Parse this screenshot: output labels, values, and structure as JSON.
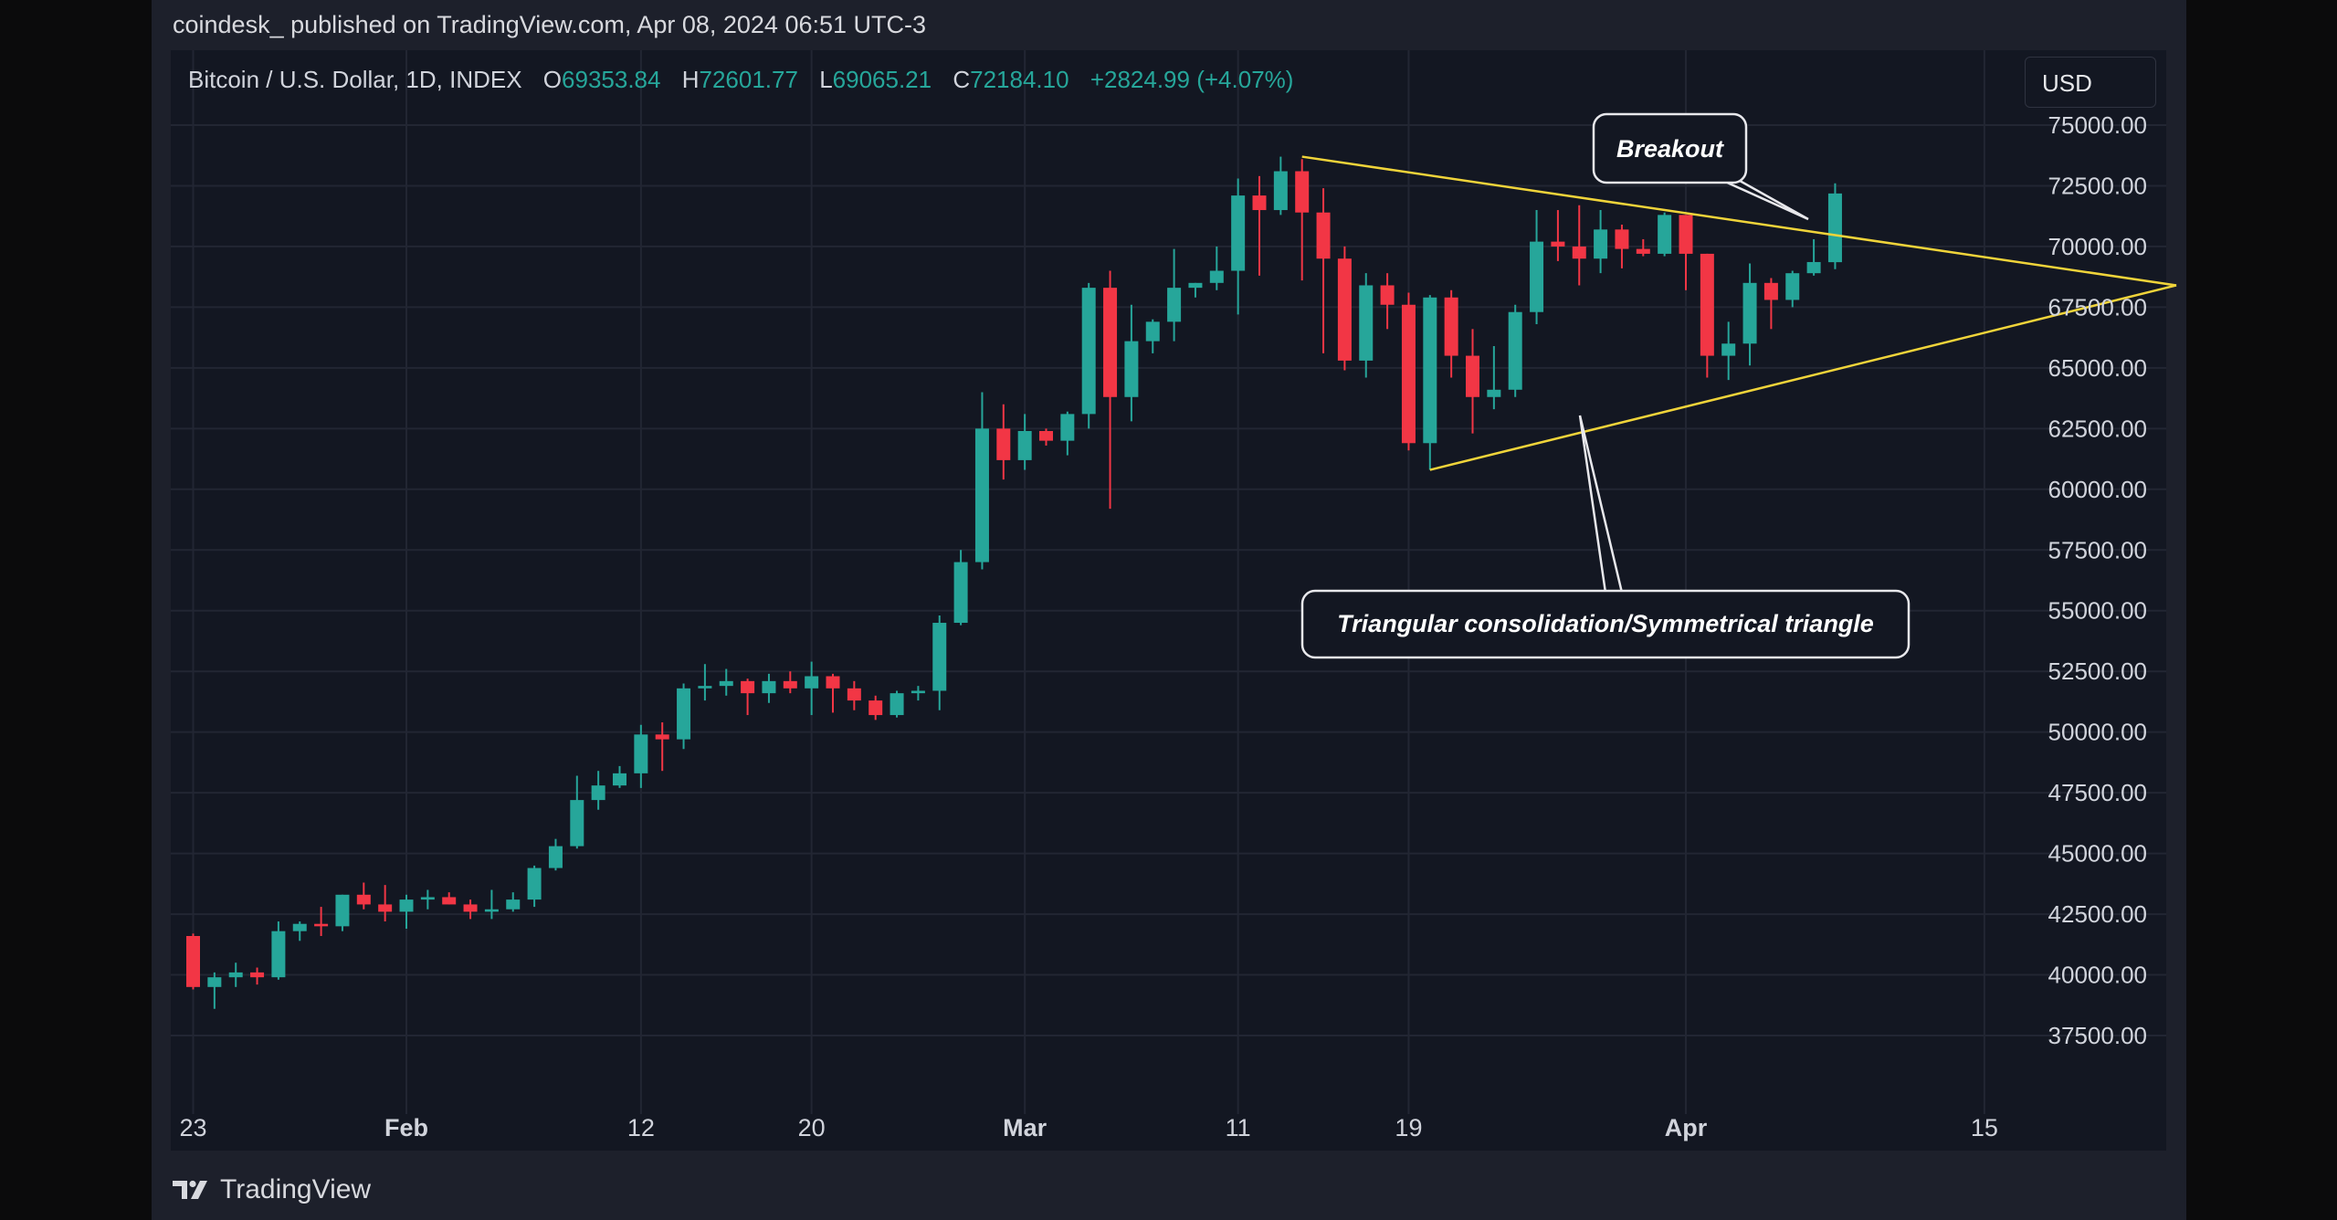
{
  "publisher_line": "coindesk_ published on TradingView.com, Apr 08, 2024 06:51 UTC-3",
  "header": {
    "symbol": "Bitcoin / U.S. Dollar, 1D, INDEX",
    "o_label": "O",
    "o_value": "69353.84",
    "h_label": "H",
    "h_value": "72601.77",
    "l_label": "L",
    "l_value": "69065.21",
    "c_label": "C",
    "c_value": "72184.10",
    "change": "+2824.99 (+4.07%)"
  },
  "currency_button": "USD",
  "brand": "TradingView",
  "colors": {
    "background": "#131722",
    "up": "#26a69a",
    "down": "#f23645",
    "trendline": "#f0d43a",
    "grid": "#222633",
    "axis_text": "#d1d4dc"
  },
  "chart_data": {
    "type": "candlestick",
    "x_tick_labels": [
      "23",
      "Feb",
      "12",
      "20",
      "Mar",
      "11",
      "19",
      "Apr",
      "15"
    ],
    "y_tick_labels": [
      "75000.00",
      "72500.00",
      "70000.00",
      "67500.00",
      "65000.00",
      "62500.00",
      "60000.00",
      "57500.00",
      "55000.00",
      "52500.00",
      "50000.00",
      "47500.00",
      "45000.00",
      "42500.00",
      "40000.00",
      "37500.00"
    ],
    "ylim": [
      35500,
      75500
    ],
    "grid": true,
    "candles": [
      {
        "date": "2024-01-22",
        "o": 41600,
        "h": 41700,
        "l": 39400,
        "c": 39500
      },
      {
        "date": "2024-01-23",
        "o": 39500,
        "h": 40100,
        "l": 38600,
        "c": 39900
      },
      {
        "date": "2024-01-24",
        "o": 39900,
        "h": 40500,
        "l": 39500,
        "c": 40100
      },
      {
        "date": "2024-01-25",
        "o": 40100,
        "h": 40300,
        "l": 39600,
        "c": 39900
      },
      {
        "date": "2024-01-26",
        "o": 39900,
        "h": 42200,
        "l": 39800,
        "c": 41800
      },
      {
        "date": "2024-01-27",
        "o": 41800,
        "h": 42200,
        "l": 41400,
        "c": 42100
      },
      {
        "date": "2024-01-28",
        "o": 42100,
        "h": 42800,
        "l": 41600,
        "c": 42000
      },
      {
        "date": "2024-01-29",
        "o": 42000,
        "h": 43300,
        "l": 41800,
        "c": 43300
      },
      {
        "date": "2024-01-30",
        "o": 43300,
        "h": 43800,
        "l": 42700,
        "c": 42900
      },
      {
        "date": "2024-01-31",
        "o": 42900,
        "h": 43700,
        "l": 42200,
        "c": 42600
      },
      {
        "date": "2024-02-01",
        "o": 42600,
        "h": 43300,
        "l": 41900,
        "c": 43100
      },
      {
        "date": "2024-02-02",
        "o": 43100,
        "h": 43500,
        "l": 42700,
        "c": 43200
      },
      {
        "date": "2024-02-03",
        "o": 43200,
        "h": 43400,
        "l": 42900,
        "c": 42900
      },
      {
        "date": "2024-02-04",
        "o": 42900,
        "h": 43100,
        "l": 42300,
        "c": 42600
      },
      {
        "date": "2024-02-05",
        "o": 42600,
        "h": 43500,
        "l": 42300,
        "c": 42700
      },
      {
        "date": "2024-02-06",
        "o": 42700,
        "h": 43400,
        "l": 42600,
        "c": 43100
      },
      {
        "date": "2024-02-07",
        "o": 43100,
        "h": 44500,
        "l": 42800,
        "c": 44400
      },
      {
        "date": "2024-02-08",
        "o": 44400,
        "h": 45600,
        "l": 44300,
        "c": 45300
      },
      {
        "date": "2024-02-09",
        "o": 45300,
        "h": 48200,
        "l": 45200,
        "c": 47200
      },
      {
        "date": "2024-02-10",
        "o": 47200,
        "h": 48400,
        "l": 46800,
        "c": 47800
      },
      {
        "date": "2024-02-11",
        "o": 47800,
        "h": 48600,
        "l": 47700,
        "c": 48300
      },
      {
        "date": "2024-02-12",
        "o": 48300,
        "h": 50300,
        "l": 47700,
        "c": 49900
      },
      {
        "date": "2024-02-13",
        "o": 49900,
        "h": 50400,
        "l": 48400,
        "c": 49700
      },
      {
        "date": "2024-02-14",
        "o": 49700,
        "h": 52000,
        "l": 49300,
        "c": 51800
      },
      {
        "date": "2024-02-15",
        "o": 51800,
        "h": 52800,
        "l": 51300,
        "c": 51900
      },
      {
        "date": "2024-02-16",
        "o": 51900,
        "h": 52600,
        "l": 51500,
        "c": 52100
      },
      {
        "date": "2024-02-17",
        "o": 52100,
        "h": 52200,
        "l": 50700,
        "c": 51600
      },
      {
        "date": "2024-02-18",
        "o": 51600,
        "h": 52400,
        "l": 51200,
        "c": 52100
      },
      {
        "date": "2024-02-19",
        "o": 52100,
        "h": 52500,
        "l": 51600,
        "c": 51800
      },
      {
        "date": "2024-02-20",
        "o": 51800,
        "h": 52900,
        "l": 50700,
        "c": 52300
      },
      {
        "date": "2024-02-21",
        "o": 52300,
        "h": 52400,
        "l": 50800,
        "c": 51800
      },
      {
        "date": "2024-02-22",
        "o": 51800,
        "h": 52100,
        "l": 50900,
        "c": 51300
      },
      {
        "date": "2024-02-23",
        "o": 51300,
        "h": 51500,
        "l": 50500,
        "c": 50700
      },
      {
        "date": "2024-02-24",
        "o": 50700,
        "h": 51700,
        "l": 50600,
        "c": 51600
      },
      {
        "date": "2024-02-25",
        "o": 51600,
        "h": 51900,
        "l": 51300,
        "c": 51700
      },
      {
        "date": "2024-02-26",
        "o": 51700,
        "h": 54800,
        "l": 50900,
        "c": 54500
      },
      {
        "date": "2024-02-27",
        "o": 54500,
        "h": 57500,
        "l": 54400,
        "c": 57000
      },
      {
        "date": "2024-02-28",
        "o": 57000,
        "h": 64000,
        "l": 56700,
        "c": 62500
      },
      {
        "date": "2024-02-29",
        "o": 62500,
        "h": 63500,
        "l": 60400,
        "c": 61200
      },
      {
        "date": "2024-03-01",
        "o": 61200,
        "h": 63100,
        "l": 60800,
        "c": 62400
      },
      {
        "date": "2024-03-02",
        "o": 62400,
        "h": 62500,
        "l": 61800,
        "c": 62000
      },
      {
        "date": "2024-03-03",
        "o": 62000,
        "h": 63200,
        "l": 61400,
        "c": 63100
      },
      {
        "date": "2024-03-04",
        "o": 63100,
        "h": 68500,
        "l": 62500,
        "c": 68300
      },
      {
        "date": "2024-03-05",
        "o": 68300,
        "h": 69000,
        "l": 59200,
        "c": 63800
      },
      {
        "date": "2024-03-06",
        "o": 63800,
        "h": 67600,
        "l": 62800,
        "c": 66100
      },
      {
        "date": "2024-03-07",
        "o": 66100,
        "h": 67000,
        "l": 65600,
        "c": 66900
      },
      {
        "date": "2024-03-08",
        "o": 66900,
        "h": 69900,
        "l": 66100,
        "c": 68300
      },
      {
        "date": "2024-03-09",
        "o": 68300,
        "h": 68500,
        "l": 67900,
        "c": 68500
      },
      {
        "date": "2024-03-10",
        "o": 68500,
        "h": 70000,
        "l": 68200,
        "c": 69000
      },
      {
        "date": "2024-03-11",
        "o": 69000,
        "h": 72800,
        "l": 67200,
        "c": 72100
      },
      {
        "date": "2024-03-12",
        "o": 72100,
        "h": 72900,
        "l": 68800,
        "c": 71500
      },
      {
        "date": "2024-03-13",
        "o": 71500,
        "h": 73700,
        "l": 71300,
        "c": 73100
      },
      {
        "date": "2024-03-14",
        "o": 73100,
        "h": 73600,
        "l": 68600,
        "c": 71400
      },
      {
        "date": "2024-03-15",
        "o": 71400,
        "h": 72400,
        "l": 65600,
        "c": 69500
      },
      {
        "date": "2024-03-16",
        "o": 69500,
        "h": 70000,
        "l": 64900,
        "c": 65300
      },
      {
        "date": "2024-03-17",
        "o": 65300,
        "h": 68900,
        "l": 64600,
        "c": 68400
      },
      {
        "date": "2024-03-18",
        "o": 68400,
        "h": 68900,
        "l": 66600,
        "c": 67600
      },
      {
        "date": "2024-03-19",
        "o": 67600,
        "h": 68100,
        "l": 61600,
        "c": 61900
      },
      {
        "date": "2024-03-20",
        "o": 61900,
        "h": 68000,
        "l": 60800,
        "c": 67900
      },
      {
        "date": "2024-03-21",
        "o": 67900,
        "h": 68200,
        "l": 64600,
        "c": 65500
      },
      {
        "date": "2024-03-22",
        "o": 65500,
        "h": 66600,
        "l": 62300,
        "c": 63800
      },
      {
        "date": "2024-03-23",
        "o": 63800,
        "h": 65900,
        "l": 63300,
        "c": 64100
      },
      {
        "date": "2024-03-24",
        "o": 64100,
        "h": 67600,
        "l": 63800,
        "c": 67300
      },
      {
        "date": "2024-03-25",
        "o": 67300,
        "h": 71500,
        "l": 66800,
        "c": 70200
      },
      {
        "date": "2024-03-26",
        "o": 70200,
        "h": 71500,
        "l": 69400,
        "c": 70000
      },
      {
        "date": "2024-03-27",
        "o": 70000,
        "h": 71700,
        "l": 68400,
        "c": 69500
      },
      {
        "date": "2024-03-28",
        "o": 69500,
        "h": 71500,
        "l": 68900,
        "c": 70700
      },
      {
        "date": "2024-03-29",
        "o": 70700,
        "h": 70900,
        "l": 69100,
        "c": 69900
      },
      {
        "date": "2024-03-30",
        "o": 69900,
        "h": 70300,
        "l": 69600,
        "c": 69700
      },
      {
        "date": "2024-03-31",
        "o": 69700,
        "h": 71400,
        "l": 69600,
        "c": 71300
      },
      {
        "date": "2024-04-01",
        "o": 71300,
        "h": 71300,
        "l": 68200,
        "c": 69700
      },
      {
        "date": "2024-04-02",
        "o": 69700,
        "h": 69700,
        "l": 64600,
        "c": 65500
      },
      {
        "date": "2024-04-03",
        "o": 65500,
        "h": 66900,
        "l": 64500,
        "c": 66000
      },
      {
        "date": "2024-04-04",
        "o": 66000,
        "h": 69300,
        "l": 65100,
        "c": 68500
      },
      {
        "date": "2024-04-05",
        "o": 68500,
        "h": 68700,
        "l": 66600,
        "c": 67800
      },
      {
        "date": "2024-04-06",
        "o": 67800,
        "h": 69000,
        "l": 67500,
        "c": 68900
      },
      {
        "date": "2024-04-07",
        "o": 68900,
        "h": 70300,
        "l": 68800,
        "c": 69360
      },
      {
        "date": "2024-04-08",
        "o": 69354,
        "h": 72602,
        "l": 69065,
        "c": 72184
      }
    ],
    "trendlines": [
      {
        "from": {
          "date": "2024-03-14",
          "price": 73700
        },
        "to": {
          "date": "2024-04-24",
          "price": 68400
        }
      },
      {
        "from": {
          "date": "2024-03-20",
          "price": 60800
        },
        "to": {
          "date": "2024-04-24",
          "price": 68400
        }
      }
    ],
    "annotations": [
      {
        "text": "Breakout"
      },
      {
        "text": "Triangular consolidation/Symmetrical triangle"
      }
    ]
  }
}
